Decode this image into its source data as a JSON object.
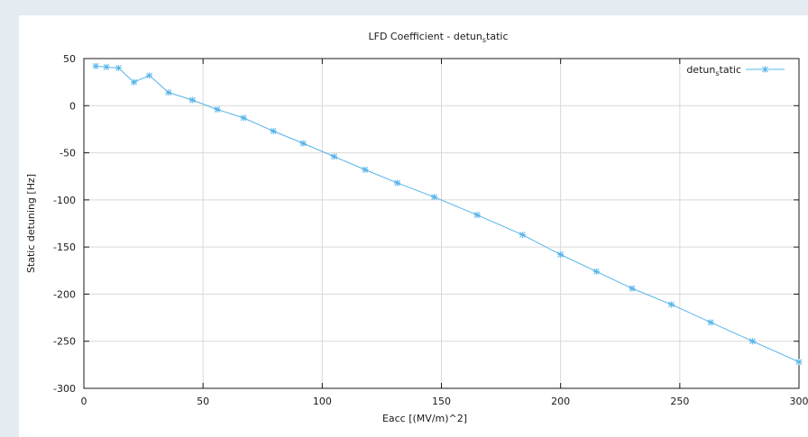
{
  "chart_data": {
    "type": "line",
    "title": "LFD Coefficient - detun_static",
    "xlabel": "Eacc [(MV/m)^2]",
    "ylabel": "Static detuning [Hz]",
    "xlim": [
      0,
      300
    ],
    "ylim": [
      -300,
      50
    ],
    "xticks": [
      0,
      50,
      100,
      150,
      200,
      250,
      300
    ],
    "yticks": [
      50,
      0,
      -50,
      -100,
      -150,
      -200,
      -250,
      -300
    ],
    "grid": true,
    "legend_position": "top-right",
    "series": [
      {
        "name": "detun_static",
        "color": "#56b4e9",
        "marker": "asterisk",
        "x": [
          5,
          9.5,
          14.5,
          21,
          27.5,
          35.5,
          45.5,
          56,
          67,
          79.5,
          92,
          105,
          118,
          131.5,
          147,
          165,
          184,
          200,
          215,
          230,
          246.5,
          263,
          280.5,
          300
        ],
        "y": [
          42,
          41,
          40,
          25,
          32,
          14,
          6,
          -4,
          -13,
          -27,
          -40,
          -54,
          -68,
          -82,
          -97,
          -116,
          -137,
          -158,
          -176,
          -194,
          -211,
          -230,
          -250,
          -272
        ]
      }
    ]
  },
  "title": {
    "main": "LFD Coefficient - detun",
    "sub": "s",
    "rest": "tatic"
  },
  "legend": {
    "main": "detun",
    "sub": "s",
    "rest": "tatic"
  }
}
